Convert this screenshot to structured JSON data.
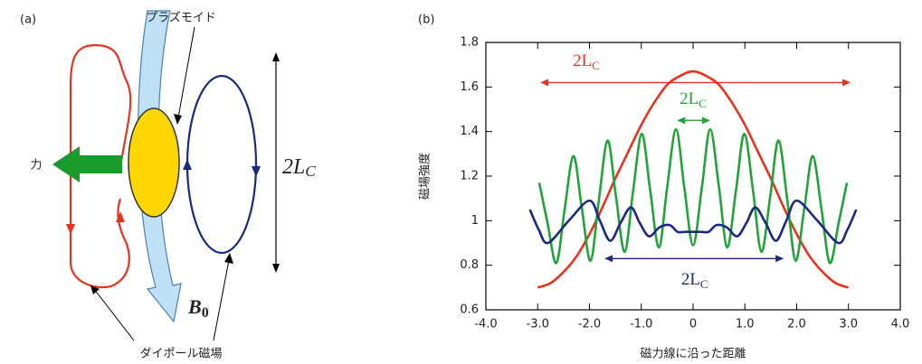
{
  "panel_a": {
    "panel_label": "(a)",
    "plasmoid": "プラズモイド",
    "force": "力",
    "field": {
      "main": "B",
      "sub": "0"
    },
    "length": {
      "main": "2L",
      "sub": "C"
    },
    "dipole": "ダイポール磁場"
  },
  "chart_data": {
    "type": "line",
    "panel_label": "(b)",
    "x_label": "磁力線に沿った距離",
    "y_label": "磁場強度",
    "xlim": [
      -4,
      4
    ],
    "xticks": [
      {
        "value": -4,
        "label": "-4.0"
      },
      {
        "value": -3,
        "label": "-3.0"
      },
      {
        "value": -2,
        "label": "-2.0"
      },
      {
        "value": -1,
        "label": "-1.0"
      },
      0,
      {
        "value": 1,
        "label": "1.0"
      },
      {
        "value": 2,
        "label": "2.0"
      },
      {
        "value": 3,
        "label": "3.0"
      },
      {
        "value": 4,
        "label": "4.0"
      }
    ],
    "ylim": [
      0.6,
      1.8
    ],
    "yticks": [
      0.6,
      0.8,
      1,
      1.2,
      1.4,
      1.6,
      1.8
    ],
    "series": [
      {
        "color": "#e8321e",
        "x": [
          -3,
          -2.75,
          -2.5,
          -2.25,
          -2,
          -1.75,
          -1.5,
          -1.25,
          -1,
          -0.75,
          -0.5,
          -0.25,
          0,
          0.25,
          0.5,
          0.75,
          1,
          1.25,
          1.5,
          1.75,
          2,
          2.25,
          2.5,
          2.75,
          3
        ],
        "values": [
          0.7,
          0.72,
          0.77,
          0.84,
          0.94,
          1.06,
          1.19,
          1.31,
          1.43,
          1.53,
          1.61,
          1.65,
          1.67,
          1.65,
          1.61,
          1.53,
          1.43,
          1.31,
          1.19,
          1.06,
          0.94,
          0.84,
          0.77,
          0.72,
          0.7
        ]
      },
      {
        "color": "#22a33a",
        "x": [
          -2.97,
          -2.81,
          -2.64,
          -2.48,
          -2.31,
          -2.15,
          -1.98,
          -1.82,
          -1.65,
          -1.49,
          -1.32,
          -1.16,
          -0.99,
          -0.83,
          -0.66,
          -0.5,
          -0.33,
          -0.17,
          0,
          0.17,
          0.33,
          0.5,
          0.66,
          0.83,
          0.99,
          1.16,
          1.32,
          1.49,
          1.65,
          1.82,
          1.98,
          2.15,
          2.31,
          2.48,
          2.64,
          2.81,
          2.97
        ],
        "values": [
          1.17,
          0.99,
          0.81,
          1.05,
          1.29,
          1.06,
          0.82,
          1.09,
          1.36,
          1.11,
          0.86,
          1.13,
          1.39,
          1.14,
          0.88,
          1.15,
          1.41,
          1.15,
          0.89,
          1.15,
          1.41,
          1.15,
          0.88,
          1.14,
          1.39,
          1.13,
          0.86,
          1.11,
          1.36,
          1.09,
          0.82,
          1.06,
          1.29,
          1.05,
          0.81,
          0.99,
          1.17
        ]
      },
      {
        "color": "#1b2a80",
        "x": [
          -3.15,
          -2.98,
          -2.8,
          -2.4,
          -2,
          -1.8,
          -1.6,
          -1.4,
          -1.2,
          -1.03,
          -0.85,
          -0.65,
          -0.45,
          -0.3,
          -0.15,
          0,
          0.15,
          0.3,
          0.45,
          0.65,
          0.85,
          1.03,
          1.2,
          1.4,
          1.6,
          1.8,
          2,
          2.4,
          2.8,
          2.98,
          3.15
        ],
        "values": [
          1.05,
          0.96,
          0.9,
          1.0,
          1.09,
          1.0,
          0.91,
          0.99,
          1.06,
          0.99,
          0.93,
          0.97,
          0.98,
          0.95,
          0.95,
          0.95,
          0.95,
          0.95,
          0.98,
          0.97,
          0.93,
          0.99,
          1.06,
          0.99,
          0.91,
          1.0,
          1.09,
          1.0,
          0.9,
          0.96,
          1.05
        ]
      }
    ],
    "annotations": [
      {
        "text": "2L",
        "sub": "C",
        "color": "#e8321e",
        "x1": -2.95,
        "x2": 3.04,
        "y": 1.62,
        "label_x": -2.06,
        "label_y": 1.71
      },
      {
        "text": "2L",
        "sub": "C",
        "color": "#22a33a",
        "x1": -0.31,
        "x2": 0.33,
        "y": 1.45,
        "label_x": 0,
        "label_y": 1.54
      },
      {
        "text": "2L",
        "sub": "C",
        "color": "#1b2a80",
        "x1": -1.71,
        "x2": 1.75,
        "y": 0.83,
        "label_x": 0.03,
        "label_y": 0.73
      }
    ]
  }
}
